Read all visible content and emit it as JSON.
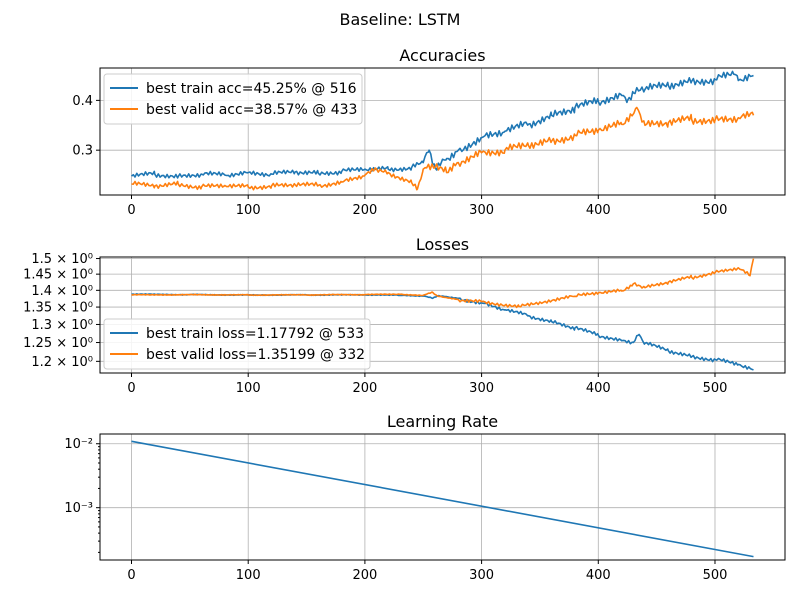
{
  "figure_title": "Baseline: LSTM",
  "colors": {
    "train": "#1f77b4",
    "valid": "#ff7f0e"
  },
  "chart_data": [
    {
      "type": "line",
      "title": "Accuracies",
      "xlim": [
        -27,
        560
      ],
      "ylim": [
        0.21,
        0.465
      ],
      "yscale": "linear",
      "xticks": [
        0,
        100,
        200,
        300,
        400,
        500
      ],
      "xtick_labels": [
        "0",
        "100",
        "200",
        "300",
        "400",
        "500"
      ],
      "yticks": [
        0.3,
        0.4
      ],
      "ytick_labels": [
        "0.3",
        "0.4"
      ],
      "grid": true,
      "legend": "upper-left",
      "series": [
        {
          "name": "best train acc=45.25% @ 516",
          "color_key": "train",
          "x": [
            0,
            20,
            40,
            60,
            80,
            100,
            120,
            140,
            160,
            180,
            200,
            220,
            240,
            250,
            255,
            260,
            265,
            270,
            280,
            300,
            320,
            340,
            360,
            380,
            400,
            420,
            425,
            430,
            440,
            460,
            480,
            500,
            516,
            520,
            533
          ],
          "y": [
            0.248,
            0.252,
            0.247,
            0.252,
            0.25,
            0.255,
            0.252,
            0.256,
            0.254,
            0.257,
            0.262,
            0.262,
            0.265,
            0.275,
            0.3,
            0.265,
            0.272,
            0.283,
            0.3,
            0.325,
            0.338,
            0.352,
            0.37,
            0.385,
            0.398,
            0.41,
            0.4,
            0.415,
            0.422,
            0.43,
            0.438,
            0.442,
            0.4525,
            0.44,
            0.45
          ]
        },
        {
          "name": "best valid acc=38.57% @ 433",
          "color_key": "valid",
          "x": [
            0,
            20,
            40,
            60,
            80,
            100,
            120,
            140,
            160,
            180,
            200,
            210,
            220,
            240,
            245,
            250,
            260,
            270,
            280,
            300,
            320,
            340,
            360,
            380,
            400,
            420,
            433,
            440,
            460,
            480,
            500,
            520,
            533
          ],
          "y": [
            0.232,
            0.228,
            0.232,
            0.226,
            0.229,
            0.226,
            0.228,
            0.231,
            0.229,
            0.236,
            0.25,
            0.262,
            0.255,
            0.235,
            0.222,
            0.262,
            0.265,
            0.255,
            0.275,
            0.295,
            0.3,
            0.31,
            0.318,
            0.33,
            0.34,
            0.352,
            0.3857,
            0.35,
            0.355,
            0.362,
            0.36,
            0.365,
            0.37
          ]
        }
      ]
    },
    {
      "type": "line",
      "title": "Losses",
      "xlim": [
        -27,
        560
      ],
      "ylim": [
        1.17,
        1.505
      ],
      "yscale": "log",
      "xticks": [
        0,
        100,
        200,
        300,
        400,
        500
      ],
      "xtick_labels": [
        "0",
        "100",
        "200",
        "300",
        "400",
        "500"
      ],
      "yticks": [
        1.2,
        1.25,
        1.3,
        1.35,
        1.4,
        1.45,
        1.5
      ],
      "ytick_labels": [
        "1.2 × 10⁰",
        "1.25 × 10⁰",
        "1.3 × 10⁰",
        "1.35 × 10⁰",
        "1.4 × 10⁰",
        "1.45 × 10⁰",
        "1.5 × 10⁰"
      ],
      "grid": true,
      "legend": "lower-left",
      "series": [
        {
          "name": "best train loss=1.17792 @ 533",
          "color_key": "train",
          "x": [
            0,
            50,
            100,
            150,
            200,
            230,
            250,
            258,
            262,
            270,
            280,
            300,
            320,
            340,
            360,
            380,
            400,
            420,
            430,
            435,
            440,
            460,
            480,
            500,
            520,
            533
          ],
          "y": [
            1.388,
            1.387,
            1.386,
            1.386,
            1.386,
            1.385,
            1.383,
            1.376,
            1.383,
            1.381,
            1.376,
            1.362,
            1.342,
            1.325,
            1.308,
            1.29,
            1.27,
            1.255,
            1.25,
            1.272,
            1.248,
            1.228,
            1.212,
            1.205,
            1.192,
            1.178
          ]
        },
        {
          "name": "best valid loss=1.35199 @ 332",
          "color_key": "valid",
          "x": [
            0,
            50,
            100,
            150,
            200,
            230,
            250,
            258,
            262,
            270,
            280,
            300,
            332,
            350,
            380,
            400,
            420,
            430,
            440,
            460,
            480,
            500,
            520,
            530,
            533
          ],
          "y": [
            1.386,
            1.387,
            1.386,
            1.386,
            1.387,
            1.388,
            1.385,
            1.394,
            1.383,
            1.378,
            1.372,
            1.366,
            1.352,
            1.365,
            1.382,
            1.392,
            1.398,
            1.42,
            1.408,
            1.425,
            1.44,
            1.455,
            1.47,
            1.445,
            1.5
          ]
        }
      ]
    },
    {
      "type": "line",
      "title": "Learning Rate",
      "xlim": [
        -27,
        560
      ],
      "ylim": [
        0.000152,
        0.0142
      ],
      "yscale": "log",
      "xticks": [
        0,
        100,
        200,
        300,
        400,
        500
      ],
      "xtick_labels": [
        "0",
        "100",
        "200",
        "300",
        "400",
        "500"
      ],
      "yticks": [
        0.001,
        0.01
      ],
      "ytick_labels": [
        "10⁻³",
        "10⁻²"
      ],
      "grid": true,
      "legend": "none",
      "series": [
        {
          "color_key": "train",
          "x": [
            0,
            533
          ],
          "y": [
            0.0109,
            0.000172
          ]
        }
      ]
    }
  ]
}
